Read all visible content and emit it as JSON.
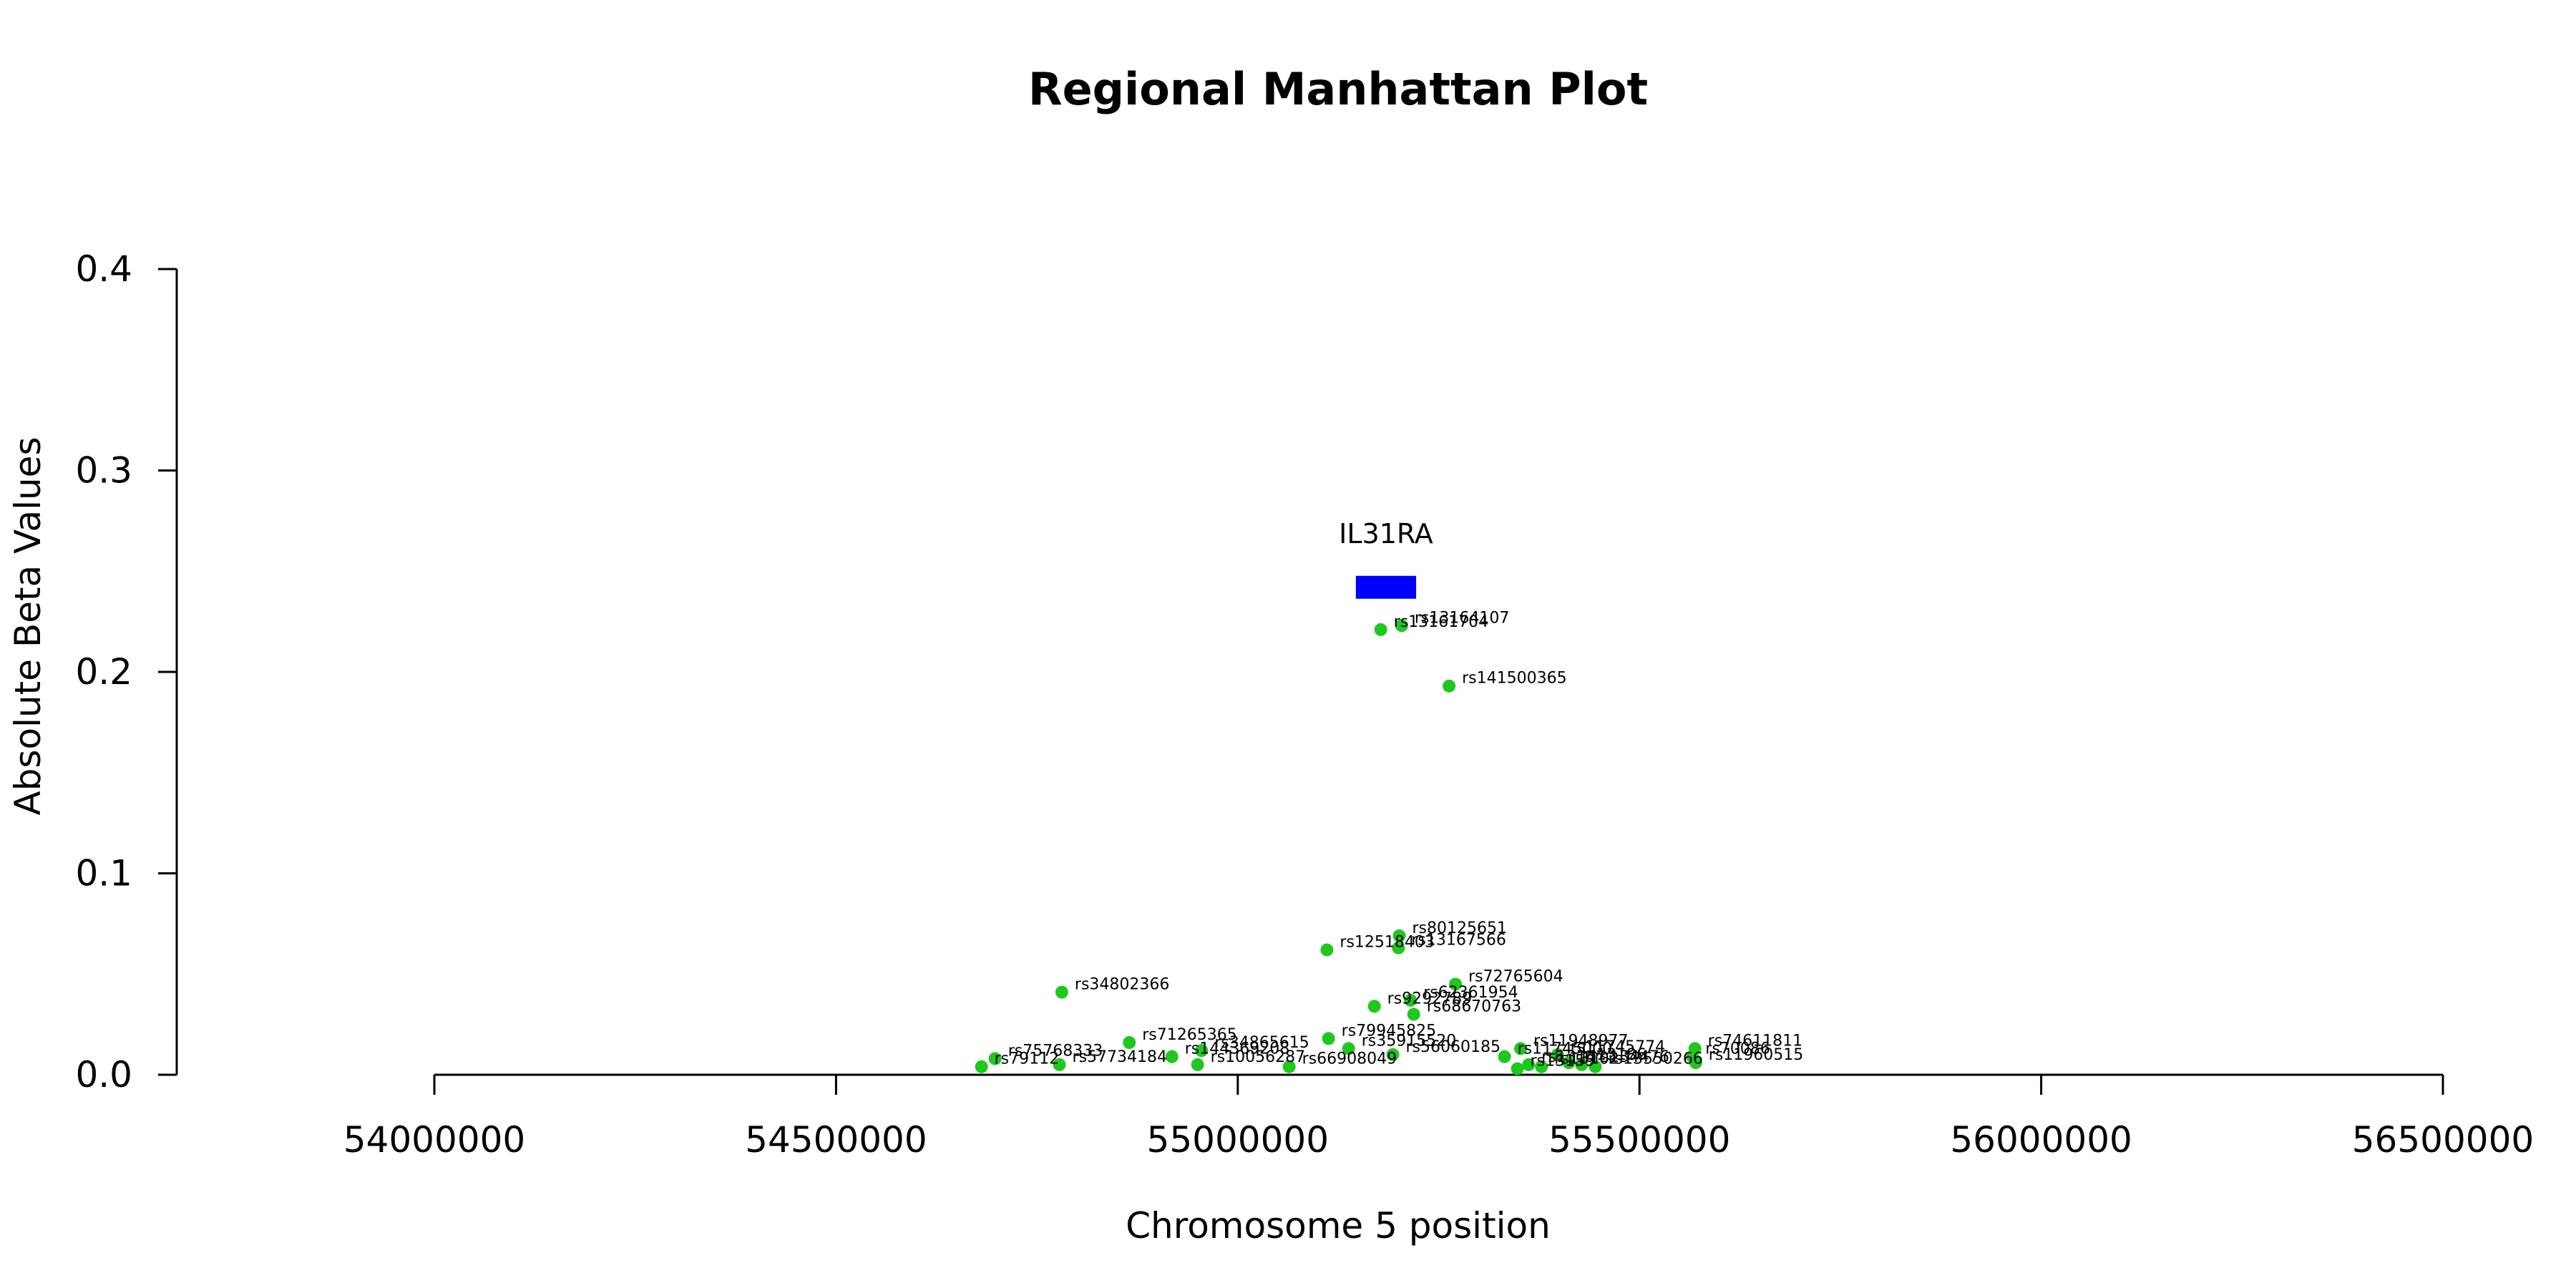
{
  "chart_data": {
    "type": "scatter",
    "title": "Regional Manhattan Plot",
    "xlabel": "Chromosome 5 position",
    "ylabel": "Absolute Beta Values",
    "xlim": [
      54000000,
      56500000
    ],
    "ylim": [
      0,
      0.4
    ],
    "xticks": [
      54000000,
      54500000,
      55000000,
      55500000,
      56000000,
      56500000
    ],
    "yticks": [
      0.0,
      0.1,
      0.2,
      0.3,
      0.4
    ],
    "xtick_labels": [
      "54000000",
      "54500000",
      "55000000",
      "55500000",
      "56000000",
      "56500000"
    ],
    "ytick_labels": [
      "0.0",
      "0.1",
      "0.2",
      "0.3",
      "0.4"
    ],
    "grid": false,
    "colors": {
      "points": "#1ec81e",
      "gene": "#0000ff",
      "axis": "#000000"
    },
    "gene": {
      "name": "IL31RA",
      "start": 55147000,
      "end": 55222000,
      "y": 0.242
    },
    "points": [
      {
        "label": "rs13161704",
        "x": 55178000,
        "y": 0.221
      },
      {
        "label": "rs13164107",
        "x": 55204000,
        "y": 0.223
      },
      {
        "label": "rs141500365",
        "x": 55263000,
        "y": 0.193
      },
      {
        "label": "rs80125651",
        "x": 55201000,
        "y": 0.069
      },
      {
        "label": "rs12518403",
        "x": 55111000,
        "y": 0.062
      },
      {
        "label": "rs13167566",
        "x": 55200000,
        "y": 0.063
      },
      {
        "label": "rs34802366",
        "x": 54781000,
        "y": 0.041
      },
      {
        "label": "rs72765604",
        "x": 55271000,
        "y": 0.045
      },
      {
        "label": "rs62361954",
        "x": 55215000,
        "y": 0.037
      },
      {
        "label": "rs9292789",
        "x": 55170000,
        "y": 0.034
      },
      {
        "label": "rs68670763",
        "x": 55219000,
        "y": 0.03
      },
      {
        "label": "rs71265365",
        "x": 54865000,
        "y": 0.016
      },
      {
        "label": "rs79945825",
        "x": 55113000,
        "y": 0.018
      },
      {
        "label": "rs34865615",
        "x": 54955000,
        "y": 0.012
      },
      {
        "label": "rs35915520",
        "x": 55138000,
        "y": 0.013
      },
      {
        "label": "rs56060185",
        "x": 55193000,
        "y": 0.01
      },
      {
        "label": "rs11948977",
        "x": 55352000,
        "y": 0.013
      },
      {
        "label": "rs74611811",
        "x": 55569000,
        "y": 0.013
      },
      {
        "label": "rs75768333",
        "x": 54698000,
        "y": 0.008
      },
      {
        "label": "rs144369208",
        "x": 54918000,
        "y": 0.009
      },
      {
        "label": "rs11745774",
        "x": 55398000,
        "y": 0.01
      },
      {
        "label": "rs11745000",
        "x": 55332000,
        "y": 0.009
      },
      {
        "label": "rs70086",
        "x": 55566000,
        "y": 0.009
      },
      {
        "label": "rs11960515",
        "x": 55570000,
        "y": 0.006
      },
      {
        "label": "rs79112",
        "x": 54681000,
        "y": 0.004
      },
      {
        "label": "rs57734184",
        "x": 54778000,
        "y": 0.005
      },
      {
        "label": "rs10056287",
        "x": 54950000,
        "y": 0.005
      },
      {
        "label": "rs66908049",
        "x": 55064000,
        "y": 0.004
      },
      {
        "label": "rs1314",
        "x": 55362000,
        "y": 0.005
      },
      {
        "label": "rs13159",
        "x": 55348000,
        "y": 0.003
      },
      {
        "label": "rs13102",
        "x": 55378000,
        "y": 0.004
      },
      {
        "label": "rs13186",
        "x": 55412000,
        "y": 0.006
      },
      {
        "label": "rs134476",
        "x": 55428000,
        "y": 0.005
      },
      {
        "label": "rs13550266",
        "x": 55445000,
        "y": 0.004
      }
    ]
  }
}
